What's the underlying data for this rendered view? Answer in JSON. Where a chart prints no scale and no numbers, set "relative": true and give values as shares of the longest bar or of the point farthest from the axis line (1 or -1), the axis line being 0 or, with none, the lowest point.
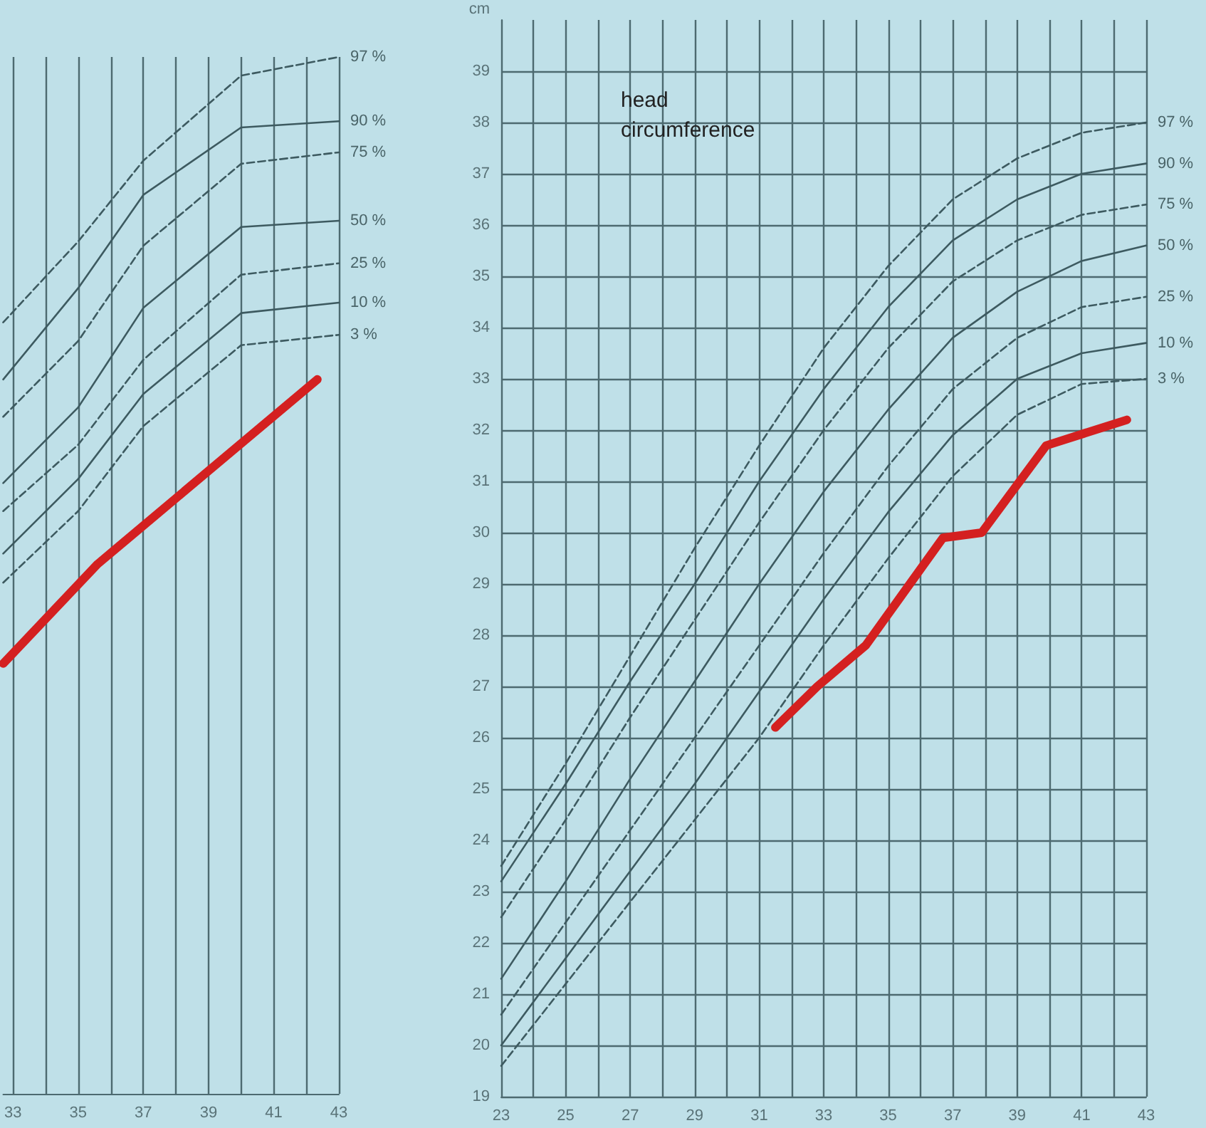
{
  "chart_data": [
    {
      "type": "line",
      "relative": true,
      "tick_labels": "x",
      "grid": "x",
      "legend": false,
      "marker": "none",
      "x": [
        32.7,
        35,
        37,
        40,
        43
      ],
      "xlim": [
        32.7,
        43
      ],
      "xticks": [
        33,
        {
          "value": 34,
          "label": null
        },
        35,
        {
          "value": 36,
          "label": null
        },
        37,
        {
          "value": 38,
          "label": null
        },
        39,
        {
          "value": 40,
          "label": null
        },
        41,
        {
          "value": 42,
          "label": null
        },
        43
      ],
      "series": [
        {
          "name": "97 %",
          "color": "#3d5a60",
          "line_style": "dashed",
          "values": [
            0.744,
            0.822,
            0.9,
            0.982,
            1.0
          ]
        },
        {
          "name": "90 %",
          "color": "#3d5a60",
          "line_style": "solid",
          "values": [
            0.689,
            0.777,
            0.867,
            0.932,
            0.938
          ]
        },
        {
          "name": "75 %",
          "color": "#3d5a60",
          "line_style": "dashed",
          "values": [
            0.653,
            0.726,
            0.818,
            0.897,
            0.908
          ]
        },
        {
          "name": "50 %",
          "color": "#3d5a60",
          "line_style": "solid",
          "values": [
            0.589,
            0.662,
            0.758,
            0.836,
            0.842
          ]
        },
        {
          "name": "25 %",
          "color": "#3d5a60",
          "line_style": "dashed",
          "values": [
            0.562,
            0.626,
            0.708,
            0.79,
            0.801
          ]
        },
        {
          "name": "10 %",
          "color": "#3d5a60",
          "line_style": "solid",
          "values": [
            0.521,
            0.593,
            0.675,
            0.753,
            0.763
          ]
        },
        {
          "name": "3 %",
          "color": "#3d5a60",
          "line_style": "dashed",
          "values": [
            0.493,
            0.562,
            0.644,
            0.722,
            0.732
          ]
        },
        {
          "color": "#d42020",
          "line_style": "solid",
          "x": [
            32.7,
            35.6,
            42.34
          ],
          "values": [
            0.415,
            0.511,
            0.689
          ]
        }
      ]
    },
    {
      "type": "line",
      "title": "head circumference",
      "ylabel": "cm",
      "grid": true,
      "legend": false,
      "marker": "none",
      "x": [
        23,
        25,
        27,
        29,
        31,
        33,
        35,
        37,
        39,
        41,
        43
      ],
      "xlim": [
        23,
        43
      ],
      "xticks": [
        23,
        {
          "value": 24,
          "label": null
        },
        25,
        {
          "value": 26,
          "label": null
        },
        27,
        {
          "value": 28,
          "label": null
        },
        29,
        {
          "value": 30,
          "label": null
        },
        31,
        {
          "value": 32,
          "label": null
        },
        33,
        {
          "value": 34,
          "label": null
        },
        35,
        {
          "value": 36,
          "label": null
        },
        37,
        {
          "value": 38,
          "label": null
        },
        39,
        {
          "value": 40,
          "label": null
        },
        41,
        {
          "value": 42,
          "label": null
        },
        43
      ],
      "ylim": [
        19,
        40
      ],
      "yticks": [
        19,
        20,
        21,
        22,
        23,
        24,
        25,
        26,
        27,
        28,
        29,
        30,
        31,
        32,
        33,
        34,
        35,
        36,
        37,
        38,
        39
      ],
      "series": [
        {
          "name": "97 %",
          "color": "#3d5a60",
          "line_style": "dashed",
          "values": [
            23.5,
            25.5,
            27.6,
            29.7,
            31.7,
            33.6,
            35.2,
            36.5,
            37.3,
            37.8,
            38.0
          ]
        },
        {
          "name": "90 %",
          "color": "#3d5a60",
          "line_style": "solid",
          "values": [
            23.2,
            25.1,
            27.1,
            29.0,
            31.0,
            32.8,
            34.4,
            35.7,
            36.5,
            37.0,
            37.2
          ]
        },
        {
          "name": "75 %",
          "color": "#3d5a60",
          "line_style": "dashed",
          "values": [
            22.5,
            24.4,
            26.4,
            28.3,
            30.2,
            32.0,
            33.6,
            34.9,
            35.7,
            36.2,
            36.4
          ]
        },
        {
          "name": "50 %",
          "color": "#3d5a60",
          "line_style": "solid",
          "values": [
            21.3,
            23.2,
            25.2,
            27.1,
            29.0,
            30.8,
            32.4,
            33.8,
            34.7,
            35.3,
            35.6
          ]
        },
        {
          "name": "25 %",
          "color": "#3d5a60",
          "line_style": "dashed",
          "values": [
            20.6,
            22.4,
            24.2,
            26.0,
            27.8,
            29.6,
            31.3,
            32.8,
            33.8,
            34.4,
            34.6
          ]
        },
        {
          "name": "10 %",
          "color": "#3d5a60",
          "line_style": "solid",
          "values": [
            20.0,
            21.7,
            23.4,
            25.1,
            26.9,
            28.7,
            30.4,
            31.9,
            33.0,
            33.5,
            33.7
          ]
        },
        {
          "name": "3 %",
          "color": "#3d5a60",
          "line_style": "dashed",
          "values": [
            19.6,
            21.2,
            22.8,
            24.4,
            26.0,
            27.8,
            29.5,
            31.1,
            32.3,
            32.9,
            33.0
          ]
        },
        {
          "color": "#d42020",
          "line_style": "solid",
          "x": [
            31.5,
            32.8,
            34.3,
            36.7,
            37.9,
            39.9,
            42.4
          ],
          "values": [
            26.2,
            27.0,
            27.8,
            29.9,
            30.0,
            31.7,
            32.2
          ]
        }
      ]
    }
  ]
}
